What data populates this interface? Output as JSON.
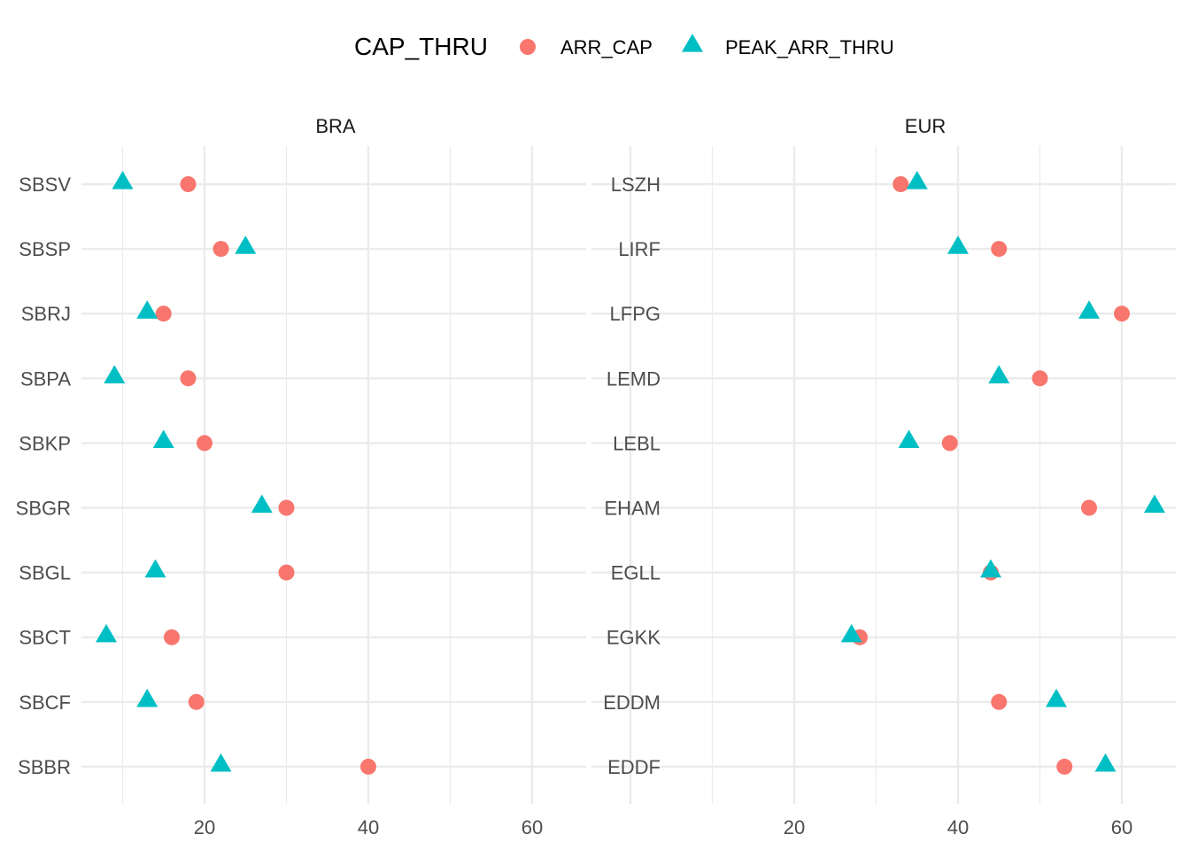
{
  "chart_data": {
    "type": "scatter",
    "legend": {
      "title": "CAP_THRU",
      "position": "top",
      "entries": [
        {
          "name": "ARR_CAP",
          "shape": "circle",
          "color": "#F8766D"
        },
        {
          "name": "PEAK_ARR_THRU",
          "shape": "triangle",
          "color": "#00BFC4"
        }
      ]
    },
    "grid": true,
    "xlim": [
      5,
      65
    ],
    "x_ticks": [
      20,
      40,
      60
    ],
    "panels": [
      {
        "label": "BRA",
        "y_categories": [
          "SBSV",
          "SBSP",
          "SBRJ",
          "SBPA",
          "SBKP",
          "SBGR",
          "SBGL",
          "SBCT",
          "SBCF",
          "SBBR"
        ],
        "x_ticks": [
          "20",
          "40",
          "60"
        ],
        "series": [
          {
            "name": "ARR_CAP",
            "values": [
              18,
              22,
              15,
              18,
              20,
              30,
              30,
              16,
              19,
              40
            ]
          },
          {
            "name": "PEAK_ARR_THRU",
            "values": [
              10,
              25,
              13,
              9,
              15,
              27,
              14,
              8,
              13,
              22
            ]
          }
        ]
      },
      {
        "label": "EUR",
        "y_categories": [
          "LSZH",
          "LIRF",
          "LFPG",
          "LEMD",
          "LEBL",
          "EHAM",
          "EGLL",
          "EGKK",
          "EDDM",
          "EDDF"
        ],
        "x_ticks": [
          "20",
          "40",
          "60"
        ],
        "series": [
          {
            "name": "ARR_CAP",
            "values": [
              33,
              45,
              60,
              50,
              39,
              56,
              44,
              28,
              45,
              53
            ]
          },
          {
            "name": "PEAK_ARR_THRU",
            "values": [
              35,
              40,
              56,
              45,
              34,
              64,
              44,
              27,
              52,
              58
            ]
          }
        ]
      }
    ]
  }
}
